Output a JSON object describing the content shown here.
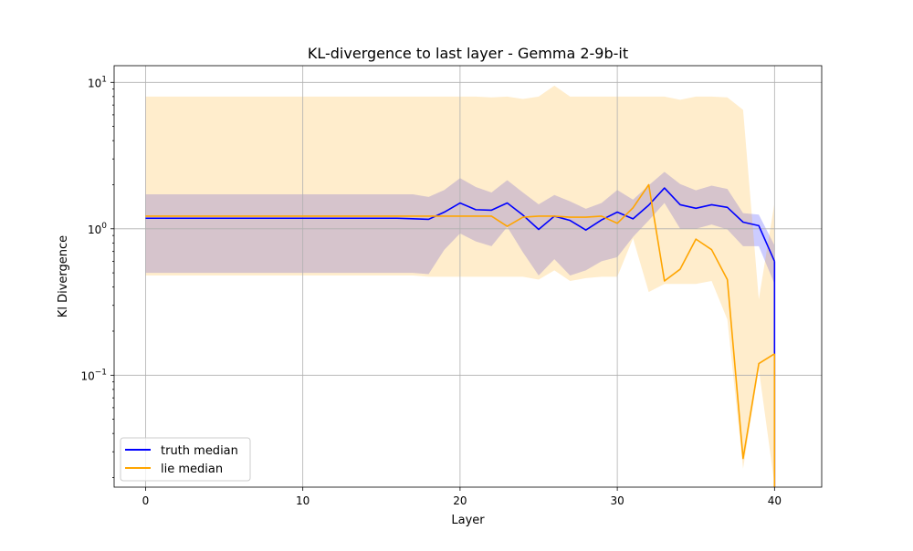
{
  "chart_data": {
    "type": "line",
    "title": "KL-divergence to last layer - Gemma 2-9b-it",
    "xlabel": "Layer",
    "ylabel": "Kl Divergence",
    "yscale": "log",
    "xlim": [
      -2,
      43
    ],
    "ylim": [
      0.0172,
      13.0
    ],
    "grid": true,
    "legend_position": "lower-left",
    "xticks": [
      0,
      10,
      20,
      30,
      40
    ],
    "xtick_labels": [
      "0",
      "10",
      "20",
      "30",
      "40"
    ],
    "yticks": [
      0.1,
      1,
      10
    ],
    "ytick_labels": [
      {
        "base": "10",
        "exp": "−1"
      },
      {
        "base": "10",
        "exp": "0"
      },
      {
        "base": "10",
        "exp": "1"
      }
    ],
    "x": [
      0,
      1,
      2,
      3,
      4,
      5,
      6,
      7,
      8,
      9,
      10,
      11,
      12,
      13,
      14,
      15,
      16,
      17,
      18,
      19,
      20,
      21,
      22,
      23,
      24,
      25,
      26,
      27,
      28,
      29,
      30,
      31,
      32,
      33,
      34,
      35,
      36,
      37,
      38,
      39,
      40
    ],
    "series": [
      {
        "name": "truth median",
        "color": "#0000ff",
        "values": [
          1.18,
          1.18,
          1.18,
          1.18,
          1.18,
          1.18,
          1.18,
          1.18,
          1.18,
          1.18,
          1.18,
          1.18,
          1.18,
          1.18,
          1.18,
          1.18,
          1.18,
          1.17,
          1.16,
          1.3,
          1.5,
          1.35,
          1.34,
          1.5,
          1.24,
          0.99,
          1.22,
          1.14,
          0.98,
          1.15,
          1.3,
          1.17,
          1.45,
          1.9,
          1.46,
          1.38,
          1.46,
          1.4,
          1.11,
          1.05,
          0.6
        ],
        "band_lower": [
          0.5,
          0.5,
          0.5,
          0.5,
          0.5,
          0.5,
          0.5,
          0.5,
          0.5,
          0.5,
          0.5,
          0.5,
          0.5,
          0.5,
          0.5,
          0.5,
          0.5,
          0.5,
          0.49,
          0.72,
          0.93,
          0.82,
          0.76,
          1.03,
          0.69,
          0.48,
          0.62,
          0.48,
          0.52,
          0.6,
          0.64,
          0.88,
          1.14,
          1.5,
          1.0,
          1.0,
          1.07,
          0.99,
          0.76,
          0.76,
          0.42
        ],
        "band_upper": [
          1.72,
          1.72,
          1.72,
          1.72,
          1.72,
          1.72,
          1.72,
          1.72,
          1.72,
          1.72,
          1.72,
          1.72,
          1.72,
          1.72,
          1.72,
          1.72,
          1.72,
          1.72,
          1.65,
          1.84,
          2.22,
          1.93,
          1.77,
          2.15,
          1.77,
          1.47,
          1.7,
          1.54,
          1.37,
          1.5,
          1.84,
          1.58,
          1.98,
          2.45,
          2.02,
          1.83,
          1.97,
          1.87,
          1.28,
          1.25,
          0.77
        ]
      },
      {
        "name": "lie median",
        "color": "#ffa500",
        "values": [
          1.22,
          1.22,
          1.22,
          1.22,
          1.22,
          1.22,
          1.22,
          1.22,
          1.22,
          1.22,
          1.22,
          1.22,
          1.22,
          1.22,
          1.22,
          1.22,
          1.22,
          1.22,
          1.22,
          1.22,
          1.22,
          1.22,
          1.22,
          1.04,
          1.2,
          1.22,
          1.22,
          1.2,
          1.2,
          1.22,
          1.09,
          1.39,
          2.0,
          0.44,
          0.53,
          0.85,
          0.72,
          0.45,
          0.027,
          0.12,
          0.14
        ],
        "band_lower": [
          0.48,
          0.48,
          0.48,
          0.48,
          0.48,
          0.48,
          0.48,
          0.48,
          0.48,
          0.48,
          0.48,
          0.48,
          0.48,
          0.48,
          0.48,
          0.48,
          0.48,
          0.48,
          0.47,
          0.47,
          0.47,
          0.47,
          0.47,
          0.47,
          0.47,
          0.45,
          0.52,
          0.44,
          0.46,
          0.47,
          0.47,
          0.86,
          0.37,
          0.42,
          0.42,
          0.42,
          0.44,
          0.24,
          0.023,
          0.11,
          0.018
        ],
        "band_upper": [
          8.0,
          8.0,
          8.0,
          8.0,
          8.0,
          8.0,
          8.0,
          8.0,
          8.0,
          8.0,
          8.0,
          8.0,
          8.0,
          8.0,
          8.0,
          8.0,
          8.0,
          8.0,
          8.0,
          8.0,
          8.0,
          8.0,
          7.9,
          8.0,
          7.7,
          8.0,
          9.5,
          8.0,
          8.0,
          8.0,
          8.0,
          8.0,
          8.0,
          8.0,
          7.6,
          8.0,
          8.0,
          7.9,
          6.5,
          0.33,
          1.5
        ]
      }
    ]
  }
}
